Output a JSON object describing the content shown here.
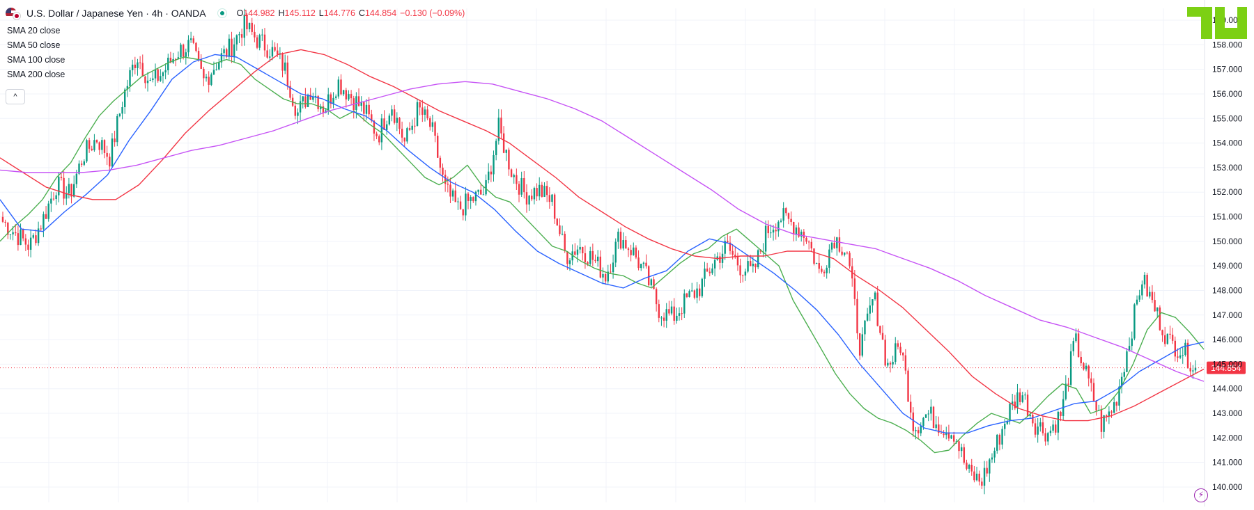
{
  "header": {
    "title": "U.S. Dollar / Japanese Yen · 4h · OANDA",
    "ohlc": {
      "open_label": "O",
      "open": "144.982",
      "high_label": "H",
      "high": "145.112",
      "low_label": "L",
      "low": "144.776",
      "close_label": "C",
      "close": "144.854",
      "change": "−0.130 (−0.09%)"
    }
  },
  "indicators": [
    {
      "label": "SMA 20 close",
      "color": "#4caf50"
    },
    {
      "label": "SMA 50 close",
      "color": "#2962ff"
    },
    {
      "label": "SMA 100 close",
      "color": "#f23645"
    },
    {
      "label": "SMA 200 close",
      "color": "#d500f9"
    }
  ],
  "collapse_glyph": "^",
  "bolt_glyph": "⚡",
  "colors": {
    "up": "#089981",
    "down": "#f23645",
    "sma20": "#4caf50",
    "sma50": "#2962ff",
    "sma100": "#f23645",
    "sma200": "#c653f5",
    "last_price_bg": "#f23645",
    "grid": "#f0f3fa",
    "logo": "#7cd014"
  },
  "chart_data": {
    "type": "line",
    "title": "U.S. Dollar / Japanese Yen · 4h · OANDA",
    "xlabel": "",
    "ylabel": "",
    "ylim": [
      139.6,
      159.0
    ],
    "y_ticks": [
      "140.000",
      "141.000",
      "142.000",
      "143.000",
      "144.000",
      "145.000",
      "146.000",
      "147.000",
      "148.000",
      "149.000",
      "150.000",
      "151.000",
      "152.000",
      "153.000",
      "154.000",
      "155.000",
      "156.000",
      "157.000",
      "158.000",
      "159.000"
    ],
    "last_price": 144.854,
    "last_price_label": "144.854",
    "grid": true,
    "price_path": [
      150.8,
      150.3,
      149.8,
      150.9,
      152.3,
      151.9,
      153.5,
      154.2,
      153.4,
      155.9,
      157.6,
      156.4,
      156.9,
      157.7,
      158.0,
      156.5,
      157.3,
      157.9,
      158.8,
      158.2,
      157.8,
      157.1,
      155.2,
      156.2,
      155.4,
      156.5,
      155.9,
      155.3,
      154.3,
      155.6,
      154.0,
      155.4,
      154.6,
      152.1,
      151.3,
      151.7,
      152.0,
      154.6,
      152.8,
      151.9,
      152.1,
      151.6,
      149.4,
      149.8,
      149.3,
      148.6,
      150.2,
      149.6,
      148.6,
      147.2,
      146.9,
      147.6,
      148.1,
      149.1,
      149.8,
      149.0,
      148.7,
      150.4,
      151.0,
      150.7,
      150.2,
      148.6,
      150.2,
      149.6,
      145.6,
      147.8,
      144.9,
      145.8,
      142.4,
      143.0,
      142.5,
      142.2,
      140.6,
      140.2,
      141.5,
      143.0,
      143.9,
      142.6,
      142.2,
      143.0,
      146.0,
      144.3,
      142.5,
      143.4,
      145.8,
      148.5,
      147.2,
      145.9,
      145.6,
      144.85
    ],
    "series": [
      {
        "name": "SMA 20 close",
        "values": [
          150.0,
          150.6,
          151.1,
          151.7,
          152.6,
          153.2,
          154.2,
          155.1,
          155.7,
          156.2,
          156.7,
          157.0,
          157.3,
          157.5,
          157.4,
          157.2,
          157.4,
          157.2,
          156.6,
          156.2,
          155.8,
          155.6,
          155.6,
          155.4,
          155.0,
          155.3,
          154.8,
          154.4,
          153.8,
          153.2,
          152.6,
          152.3,
          152.6,
          153.1,
          152.3,
          151.8,
          151.6,
          151.0,
          150.4,
          149.8,
          149.6,
          149.2,
          148.9,
          148.7,
          148.6,
          148.3,
          148.1,
          148.6,
          149.1,
          149.5,
          149.7,
          150.2,
          150.5,
          150.0,
          149.5,
          149.0,
          147.6,
          146.6,
          145.6,
          144.6,
          143.8,
          143.2,
          142.8,
          142.6,
          142.3,
          141.9,
          141.4,
          141.5,
          142.1,
          142.6,
          143.0,
          142.8,
          142.6,
          143.1,
          143.7,
          144.2,
          144.0,
          143.0,
          143.2,
          143.9,
          145.0,
          146.4,
          147.1,
          146.9,
          146.3,
          145.6
        ]
      },
      {
        "name": "SMA 50 close",
        "values": [
          151.7,
          150.5,
          150.4,
          151.2,
          151.9,
          152.7,
          154.1,
          155.3,
          156.6,
          157.3,
          157.6,
          157.5,
          157.0,
          156.5,
          156.0,
          155.8,
          155.4,
          155.1,
          154.5,
          153.7,
          153.0,
          152.4,
          152.0,
          151.3,
          150.4,
          149.6,
          149.1,
          148.7,
          148.3,
          148.1,
          148.5,
          148.8,
          149.6,
          150.1,
          149.9,
          149.3,
          148.7,
          148.0,
          147.2,
          146.2,
          145.0,
          144.0,
          143.0,
          142.4,
          142.2,
          142.2,
          142.5,
          142.7,
          142.8,
          143.1,
          143.4,
          143.5,
          144.0,
          144.7,
          145.2,
          145.7,
          145.9
        ]
      },
      {
        "name": "SMA 100 close",
        "values": [
          153.4,
          152.8,
          152.2,
          151.9,
          151.7,
          151.7,
          152.3,
          153.3,
          154.4,
          155.3,
          156.1,
          156.9,
          157.6,
          157.8,
          157.6,
          157.2,
          156.7,
          156.3,
          155.8,
          155.3,
          154.9,
          154.5,
          154.0,
          153.3,
          152.6,
          151.8,
          151.2,
          150.6,
          150.1,
          149.7,
          149.4,
          149.3,
          149.4,
          149.4,
          149.6,
          149.6,
          149.3,
          148.6,
          148.0,
          147.3,
          146.4,
          145.5,
          144.5,
          143.8,
          143.2,
          142.9,
          142.7,
          142.7,
          142.9,
          143.3,
          143.8,
          144.3,
          144.8
        ]
      },
      {
        "name": "SMA 200 close",
        "values": [
          152.9,
          152.8,
          152.8,
          152.8,
          152.9,
          153.1,
          153.4,
          153.7,
          153.9,
          154.2,
          154.5,
          154.9,
          155.3,
          155.6,
          155.9,
          156.2,
          156.4,
          156.5,
          156.4,
          156.1,
          155.8,
          155.4,
          154.9,
          154.2,
          153.5,
          152.8,
          152.1,
          151.3,
          150.7,
          150.3,
          150.1,
          149.9,
          149.7,
          149.3,
          148.9,
          148.4,
          147.8,
          147.3,
          146.8,
          146.5,
          146.1,
          145.7,
          145.2,
          144.7,
          144.3
        ]
      }
    ]
  }
}
